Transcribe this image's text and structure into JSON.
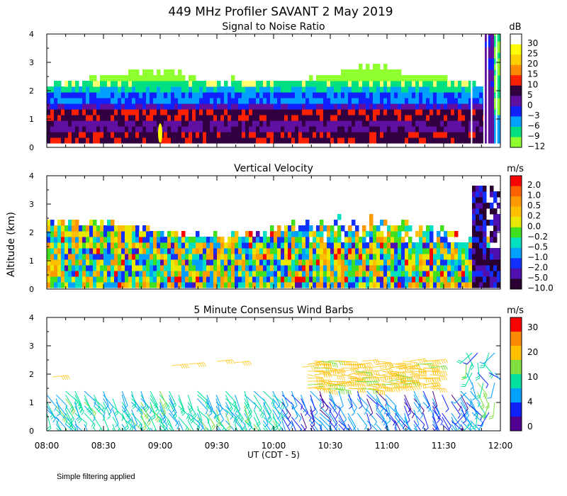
{
  "title": "449 MHz Profiler SAVANT  2 May 2019",
  "ylabel": "Altitude (km)",
  "xlabel": "UT  (CDT - 5)",
  "footnote": "Simple filtering applied",
  "x_tick_labels": [
    "08:00",
    "08:30",
    "09:00",
    "09:30",
    "10:00",
    "10:30",
    "11:00",
    "11:30",
    "12:00"
  ],
  "chart_data": [
    {
      "type": "heatmap",
      "title": "Signal to Noise Ratio",
      "unit": "dB",
      "xlim": [
        "08:00",
        "12:00"
      ],
      "ylim": [
        0,
        4
      ],
      "y_ticks": [
        "0",
        "1",
        "2",
        "3",
        "4"
      ],
      "colorbar_labels": [
        "30",
        "25",
        "20",
        "15",
        "10",
        "5",
        "0",
        "−3",
        "−6",
        "−9",
        "−12"
      ],
      "colorbar_colors": [
        "#ffffff",
        "#ffff00",
        "#ffd000",
        "#ff8c00",
        "#ff2000",
        "#300040",
        "#6010a0",
        "#1020ff",
        "#00a0ff",
        "#00e080",
        "#90ff30"
      ]
    },
    {
      "type": "heatmap",
      "title": "Vertical Velocity",
      "unit": "m/s",
      "xlim": [
        "08:00",
        "12:00"
      ],
      "ylim": [
        0,
        4
      ],
      "y_ticks": [
        "0",
        "1",
        "2",
        "3",
        "4"
      ],
      "colorbar_labels": [
        "2.0",
        "1.0",
        "0.5",
        "0.2",
        "0.0",
        "−0.2",
        "−0.5",
        "−1.0",
        "−2.0",
        "−5.0",
        "−10.0"
      ],
      "colorbar_colors": [
        "#ff0000",
        "#ff6000",
        "#ff9900",
        "#ffc000",
        "#e8e800",
        "#40e020",
        "#00e0c0",
        "#00a0ff",
        "#1030ff",
        "#5010b0",
        "#2a0030"
      ]
    },
    {
      "type": "scatter",
      "title": "5 Minute Consensus Wind Barbs",
      "unit": "m/s",
      "xlim": [
        "08:00",
        "12:00"
      ],
      "ylim": [
        0,
        4
      ],
      "y_ticks": [
        "0",
        "1",
        "2",
        "3",
        "4"
      ],
      "colorbar_labels": [
        "30",
        "20",
        "10",
        "4",
        "0"
      ],
      "colorbar_colors": [
        "#ff0000",
        "#ff8c00",
        "#ffc000",
        "#80e040",
        "#00e0a0",
        "#00a0ff",
        "#1020ff",
        "#500090"
      ]
    }
  ]
}
